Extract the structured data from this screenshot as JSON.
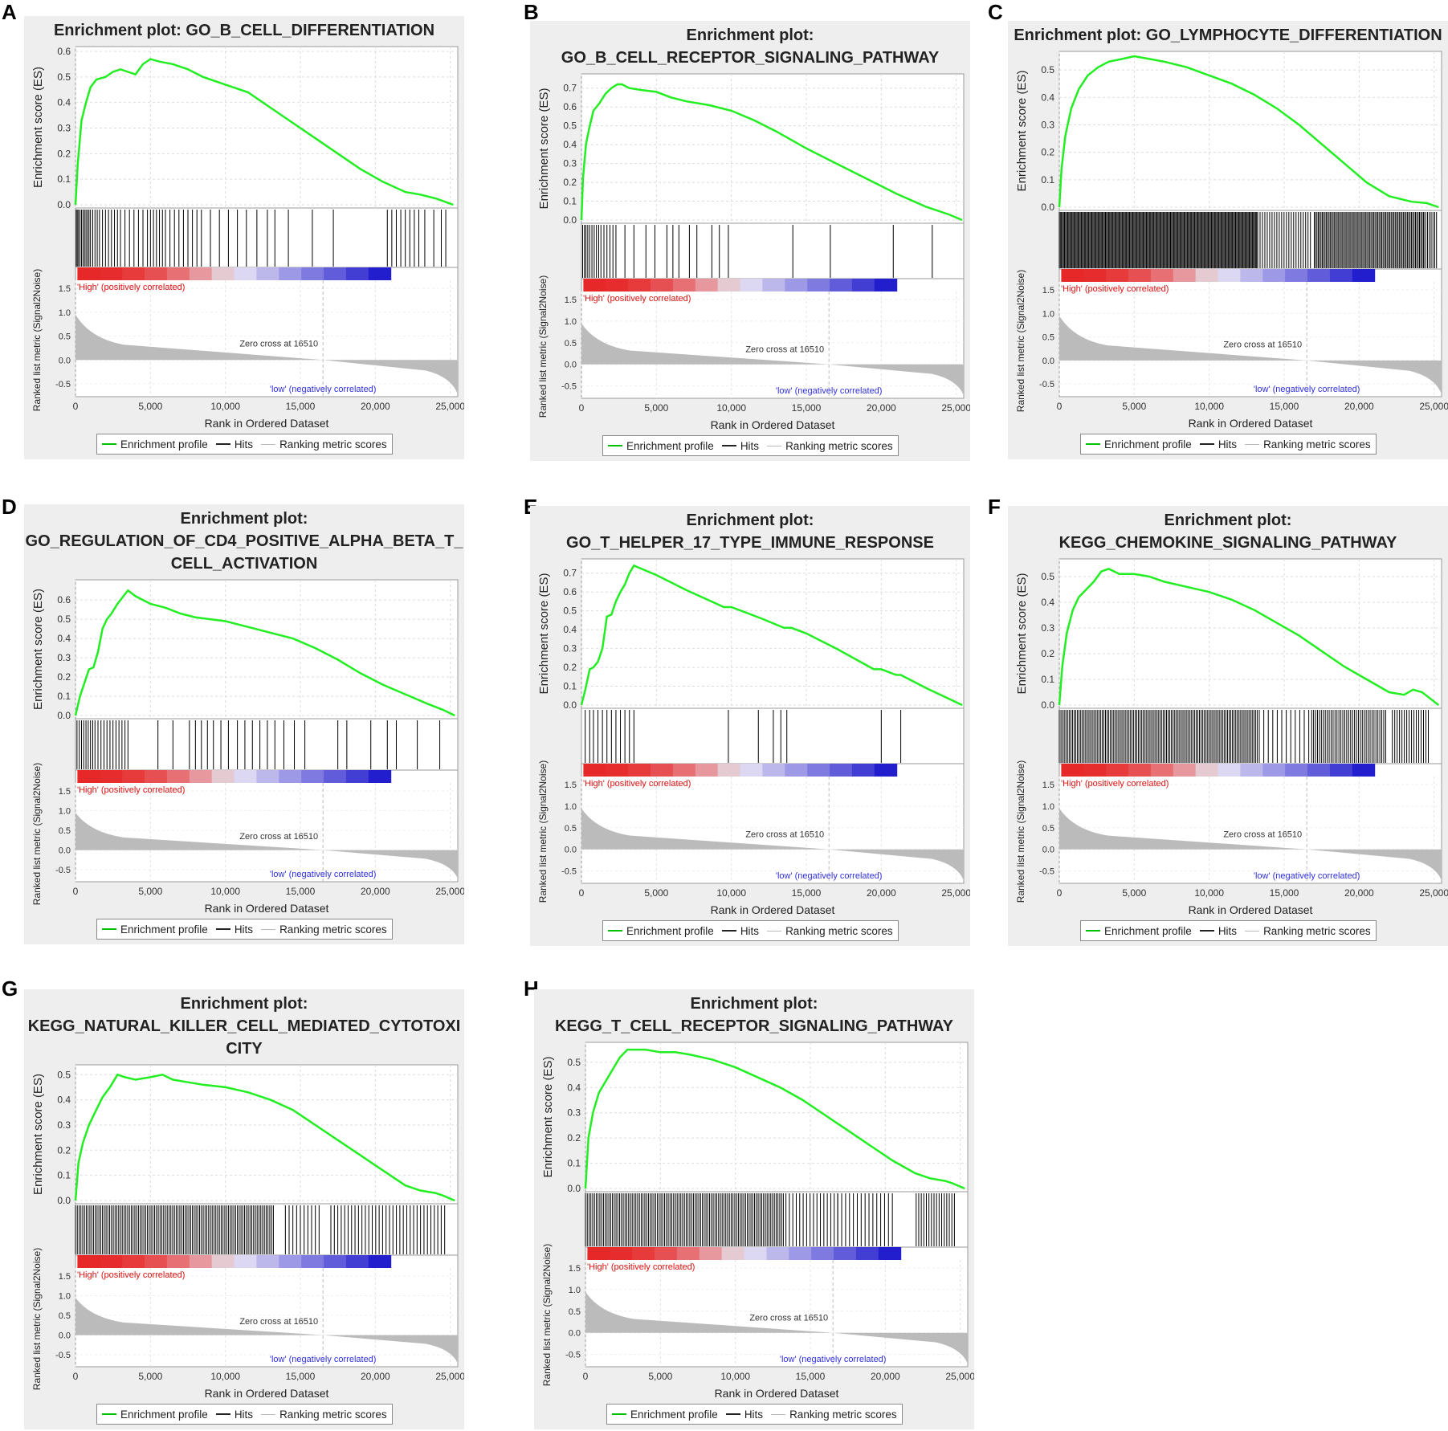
{
  "legend": {
    "profile": "Enrichment profile",
    "hits": "Hits",
    "metric": "Ranking metric scores"
  },
  "labels": {
    "es_axis": "Enrichment score (ES)",
    "metric_axis": "Ranked list metric (Signal2Noise)",
    "rank_axis": "Rank in Ordered Dataset",
    "high": "'High' (positively correlated)",
    "low": "'low' (negatively correlated)",
    "zero_cross": "Zero cross at 16510"
  },
  "colors": {
    "profile": "#22ee22",
    "hits": "#000000",
    "metric": "#bbbbbb",
    "high": "#e01010",
    "low": "#3030e0",
    "panel_bg": "#eeeeee"
  },
  "chart_data": [
    {
      "type": "line",
      "panel": "A",
      "title_lines": [
        "Enrichment plot: GO_B_CELL_DIFFERENTIATION"
      ],
      "xlim": [
        0,
        25500
      ],
      "ylim": [
        0,
        0.6
      ],
      "yticks": [
        0.0,
        0.1,
        0.2,
        0.3,
        0.4,
        0.5,
        0.6
      ],
      "xticks": [
        0,
        5000,
        10000,
        15000,
        20000,
        25000
      ],
      "xtick_labels": [
        "0",
        "5,000",
        "10,000",
        "15,000",
        "20,000",
        "25,000"
      ],
      "es_profile": {
        "x": [
          0,
          150,
          400,
          700,
          1000,
          1400,
          2000,
          2500,
          3000,
          3500,
          4000,
          4500,
          5000,
          5600,
          6500,
          7500,
          8500,
          10000,
          11500,
          13000,
          14500,
          16000,
          17500,
          19000,
          20500,
          22000,
          23000,
          24000,
          24500,
          25200
        ],
        "y": [
          0,
          0.16,
          0.33,
          0.4,
          0.46,
          0.49,
          0.5,
          0.52,
          0.53,
          0.52,
          0.51,
          0.55,
          0.57,
          0.56,
          0.55,
          0.53,
          0.5,
          0.47,
          0.44,
          0.38,
          0.32,
          0.26,
          0.2,
          0.14,
          0.09,
          0.05,
          0.04,
          0.025,
          0.015,
          0
        ]
      },
      "hits": [
        50,
        120,
        200,
        300,
        400,
        500,
        600,
        700,
        800,
        900,
        1000,
        1150,
        1300,
        1450,
        1600,
        1800,
        2000,
        2200,
        2400,
        2600,
        2800,
        3000,
        3300,
        3600,
        3900,
        4200,
        4500,
        4800,
        5000,
        5200,
        5400,
        5600,
        5800,
        6000,
        6300,
        6600,
        6900,
        7200,
        7500,
        7800,
        8100,
        8400,
        9000,
        9600,
        10200,
        10800,
        11400,
        12100,
        12800,
        13300,
        14200,
        15800,
        17200,
        20800,
        21100,
        21400,
        21700,
        22000,
        22300,
        22600,
        22900,
        23300,
        23900,
        24400,
        24700
      ]
    },
    {
      "type": "line",
      "panel": "B",
      "title_lines": [
        "Enrichment plot:",
        "GO_B_CELL_RECEPTOR_SIGNALING_PATHWAY"
      ],
      "xlim": [
        0,
        25500
      ],
      "ylim": [
        0,
        0.75
      ],
      "yticks": [
        0.0,
        0.1,
        0.2,
        0.3,
        0.4,
        0.5,
        0.6,
        0.7
      ],
      "xticks": [
        0,
        5000,
        10000,
        15000,
        20000,
        25000
      ],
      "xtick_labels": [
        "0",
        "5,000",
        "10,000",
        "15,000",
        "20,000",
        "25,000"
      ],
      "es_profile": {
        "x": [
          0,
          100,
          300,
          500,
          800,
          1200,
          1600,
          2000,
          2400,
          2700,
          3200,
          4000,
          5000,
          6000,
          7000,
          8500,
          10000,
          11500,
          13000,
          15000,
          17000,
          19000,
          21000,
          23000,
          24500,
          25400
        ],
        "y": [
          0,
          0.22,
          0.4,
          0.48,
          0.58,
          0.62,
          0.67,
          0.7,
          0.72,
          0.72,
          0.7,
          0.69,
          0.68,
          0.65,
          0.63,
          0.61,
          0.58,
          0.53,
          0.47,
          0.38,
          0.3,
          0.22,
          0.14,
          0.07,
          0.03,
          0
        ]
      },
      "hits": [
        80,
        200,
        300,
        420,
        550,
        700,
        850,
        1000,
        1150,
        1300,
        1500,
        1700,
        1900,
        2100,
        2300,
        2900,
        3500,
        4300,
        4900,
        5700,
        6100,
        6500,
        7200,
        7700,
        8700,
        9200,
        9800,
        14100,
        16600,
        20800,
        23400
      ]
    },
    {
      "type": "line",
      "panel": "C",
      "title_lines": [
        "Enrichment plot: GO_LYMPHOCYTE_DIFFERENTIATION"
      ],
      "xlim": [
        0,
        25500
      ],
      "ylim": [
        0,
        0.55
      ],
      "yticks": [
        0.0,
        0.1,
        0.2,
        0.3,
        0.4,
        0.5
      ],
      "xticks": [
        0,
        5000,
        10000,
        15000,
        20000,
        25000
      ],
      "xtick_labels": [
        "0",
        "5,000",
        "10,000",
        "15,000",
        "20,000",
        "25,000"
      ],
      "es_profile": {
        "x": [
          0,
          150,
          400,
          800,
          1300,
          1900,
          2600,
          3300,
          4200,
          5000,
          6000,
          7000,
          8500,
          10000,
          11500,
          13000,
          14500,
          16000,
          17500,
          19000,
          20500,
          22000,
          23500,
          24500,
          25300
        ],
        "y": [
          0,
          0.14,
          0.26,
          0.36,
          0.43,
          0.48,
          0.51,
          0.53,
          0.54,
          0.55,
          0.54,
          0.53,
          0.51,
          0.48,
          0.45,
          0.41,
          0.36,
          0.3,
          0.23,
          0.16,
          0.09,
          0.04,
          0.02,
          0.015,
          0
        ]
      },
      "hits_dense": [
        [
          0,
          13200,
          70
        ],
        [
          13200,
          16800,
          160
        ],
        [
          17000,
          24300,
          90
        ],
        [
          24300,
          25200,
          120
        ]
      ]
    },
    {
      "type": "line",
      "panel": "D",
      "title_lines": [
        "Enrichment plot:",
        "GO_REGULATION_OF_CD4_POSITIVE_ALPHA_BETA_T_",
        "CELL_ACTIVATION"
      ],
      "xlim": [
        0,
        25500
      ],
      "ylim": [
        0,
        0.68
      ],
      "yticks": [
        0.0,
        0.1,
        0.2,
        0.3,
        0.4,
        0.5,
        0.6
      ],
      "xticks": [
        0,
        5000,
        10000,
        15000,
        20000,
        25000
      ],
      "xtick_labels": [
        "0",
        "5,000",
        "10,000",
        "15,000",
        "20,000",
        "25,000"
      ],
      "es_profile": {
        "x": [
          0,
          300,
          600,
          900,
          1200,
          1500,
          1800,
          2100,
          2400,
          2800,
          3200,
          3500,
          4000,
          5000,
          6000,
          7000,
          8000,
          9000,
          10000,
          11000,
          12000,
          13000,
          14500,
          16000,
          17500,
          19000,
          20500,
          22000,
          23500,
          24500,
          25300
        ],
        "y": [
          0,
          0.1,
          0.17,
          0.24,
          0.25,
          0.33,
          0.45,
          0.5,
          0.53,
          0.58,
          0.62,
          0.65,
          0.62,
          0.58,
          0.56,
          0.53,
          0.51,
          0.5,
          0.49,
          0.47,
          0.45,
          0.43,
          0.4,
          0.35,
          0.29,
          0.22,
          0.16,
          0.11,
          0.06,
          0.03,
          0
        ]
      },
      "hits": [
        100,
        250,
        400,
        550,
        700,
        850,
        1000,
        1150,
        1300,
        1500,
        1700,
        1900,
        2100,
        2300,
        2500,
        2700,
        2900,
        3100,
        3300,
        3500,
        5500,
        6500,
        7600,
        8000,
        8400,
        8800,
        9200,
        9700,
        10200,
        10800,
        11300,
        11800,
        12300,
        12800,
        13300,
        13900,
        14600,
        15300,
        17500,
        18100,
        19700,
        20800,
        21400,
        22800,
        24300
      ]
    },
    {
      "type": "line",
      "panel": "E",
      "title_lines": [
        "Enrichment plot:",
        "GO_T_HELPER_17_TYPE_IMMUNE_RESPONSE"
      ],
      "xlim": [
        0,
        25500
      ],
      "ylim": [
        0,
        0.75
      ],
      "yticks": [
        0.0,
        0.1,
        0.2,
        0.3,
        0.4,
        0.5,
        0.6,
        0.7
      ],
      "xticks": [
        0,
        5000,
        10000,
        15000,
        20000,
        25000
      ],
      "xtick_labels": [
        "0",
        "5,000",
        "10,000",
        "15,000",
        "20,000",
        "25,000"
      ],
      "es_profile": {
        "x": [
          0,
          250,
          550,
          800,
          1100,
          1400,
          1700,
          2000,
          2300,
          2600,
          2900,
          3200,
          3500,
          5000,
          7000,
          9500,
          10000,
          12000,
          13500,
          14000,
          15000,
          17000,
          19500,
          20000,
          21000,
          21300,
          23000,
          25400
        ],
        "y": [
          0,
          0.08,
          0.19,
          0.2,
          0.23,
          0.3,
          0.47,
          0.48,
          0.55,
          0.6,
          0.64,
          0.7,
          0.74,
          0.69,
          0.61,
          0.52,
          0.52,
          0.46,
          0.41,
          0.41,
          0.38,
          0.3,
          0.19,
          0.19,
          0.16,
          0.16,
          0.09,
          0
        ]
      },
      "hits": [
        250,
        550,
        800,
        1100,
        1400,
        1700,
        2000,
        2300,
        2600,
        2900,
        3200,
        3500,
        9800,
        11800,
        12800,
        13300,
        13700,
        20000,
        21300
      ]
    },
    {
      "type": "line",
      "panel": "F",
      "title_lines": [
        "Enrichment plot:",
        "KEGG_CHEMOKINE_SIGNALING_PATHWAY"
      ],
      "xlim": [
        0,
        25500
      ],
      "ylim": [
        0,
        0.55
      ],
      "yticks": [
        0.0,
        0.1,
        0.2,
        0.3,
        0.4,
        0.5
      ],
      "xticks": [
        0,
        5000,
        10000,
        15000,
        20000,
        25000
      ],
      "xtick_labels": [
        "0",
        "5,000",
        "10,000",
        "15,000",
        "20,000",
        "25,000"
      ],
      "es_profile": {
        "x": [
          0,
          200,
          500,
          900,
          1300,
          1800,
          2300,
          2800,
          3300,
          4000,
          5000,
          6000,
          7000,
          8500,
          10000,
          11500,
          13000,
          14500,
          16000,
          17500,
          19000,
          20500,
          22000,
          23000,
          23600,
          24200,
          25300
        ],
        "y": [
          0,
          0.15,
          0.28,
          0.37,
          0.42,
          0.45,
          0.48,
          0.52,
          0.53,
          0.51,
          0.51,
          0.5,
          0.48,
          0.46,
          0.44,
          0.41,
          0.37,
          0.32,
          0.27,
          0.21,
          0.15,
          0.1,
          0.05,
          0.04,
          0.06,
          0.05,
          0
        ]
      },
      "hits_dense": [
        [
          0,
          13300,
          110
        ],
        [
          13300,
          16800,
          300
        ],
        [
          16800,
          21800,
          130
        ],
        [
          22200,
          24700,
          160
        ]
      ]
    },
    {
      "type": "line",
      "panel": "G",
      "title_lines": [
        "Enrichment plot:",
        "KEGG_NATURAL_KILLER_CELL_MEDIATED_CYTOTOXI",
        "CITY"
      ],
      "xlim": [
        0,
        25500
      ],
      "ylim": [
        0,
        0.52
      ],
      "yticks": [
        0.0,
        0.1,
        0.2,
        0.3,
        0.4,
        0.5
      ],
      "xticks": [
        0,
        5000,
        10000,
        15000,
        20000,
        25000
      ],
      "xtick_labels": [
        "0",
        "5,000",
        "10,000",
        "15,000",
        "20,000",
        "25,000"
      ],
      "es_profile": {
        "x": [
          0,
          200,
          500,
          900,
          1300,
          1800,
          2300,
          2800,
          3300,
          4000,
          5000,
          5800,
          6500,
          7500,
          8500,
          10000,
          11500,
          13000,
          14500,
          16000,
          17500,
          19000,
          20500,
          22000,
          23000,
          24000,
          24500,
          25300
        ],
        "y": [
          0,
          0.15,
          0.23,
          0.3,
          0.35,
          0.41,
          0.45,
          0.5,
          0.49,
          0.48,
          0.49,
          0.5,
          0.48,
          0.47,
          0.46,
          0.45,
          0.43,
          0.4,
          0.36,
          0.3,
          0.24,
          0.18,
          0.12,
          0.06,
          0.04,
          0.03,
          0.02,
          0
        ]
      },
      "hits_dense": [
        [
          0,
          13300,
          120
        ],
        [
          14000,
          16500,
          250
        ],
        [
          17000,
          24600,
          230
        ]
      ]
    },
    {
      "type": "line",
      "panel": "H",
      "title_lines": [
        "Enrichment plot:",
        "KEGG_T_CELL_RECEPTOR_SIGNALING_PATHWAY"
      ],
      "xlim": [
        0,
        25500
      ],
      "ylim": [
        0,
        0.56
      ],
      "yticks": [
        0.0,
        0.1,
        0.2,
        0.3,
        0.4,
        0.5
      ],
      "xticks": [
        0,
        5000,
        10000,
        15000,
        20000,
        25000
      ],
      "xtick_labels": [
        "0",
        "5,000",
        "10,000",
        "15,000",
        "20,000",
        "25,000"
      ],
      "es_profile": {
        "x": [
          0,
          200,
          500,
          900,
          1300,
          1800,
          2300,
          2800,
          3300,
          4000,
          5000,
          6000,
          7000,
          8500,
          10000,
          11500,
          13000,
          14500,
          16000,
          17500,
          19000,
          20500,
          22000,
          23000,
          24000,
          24500,
          25300
        ],
        "y": [
          0,
          0.2,
          0.3,
          0.38,
          0.42,
          0.47,
          0.52,
          0.55,
          0.55,
          0.55,
          0.54,
          0.54,
          0.53,
          0.51,
          0.48,
          0.44,
          0.4,
          0.35,
          0.29,
          0.23,
          0.17,
          0.11,
          0.06,
          0.04,
          0.03,
          0.02,
          0
        ]
      },
      "hits_dense": [
        [
          0,
          13300,
          120
        ],
        [
          13300,
          16800,
          230
        ],
        [
          16800,
          20600,
          260
        ],
        [
          22000,
          24600,
          170
        ]
      ]
    }
  ]
}
